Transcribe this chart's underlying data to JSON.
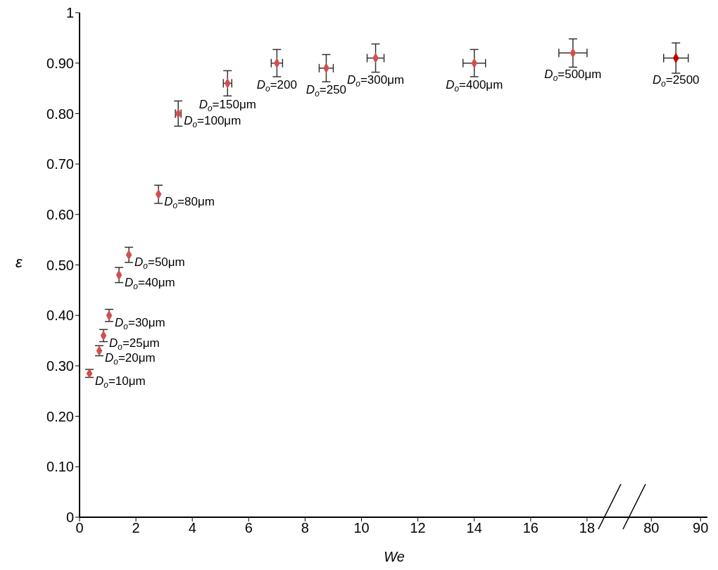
{
  "chart_data": [
    {
      "type": "scatter",
      "ylabel": "ε",
      "xlabel": "We",
      "xlim": [
        0,
        18.9
      ],
      "xticks": [
        0,
        2,
        4,
        6,
        8,
        10,
        12,
        14,
        16,
        18
      ],
      "ylim": [
        0,
        1
      ],
      "yticks": [
        {
          "value": 0,
          "label": "0"
        },
        {
          "value": 0.1,
          "label": "0.10"
        },
        {
          "value": 0.2,
          "label": "0.20"
        },
        {
          "value": 0.3,
          "label": "0.30"
        },
        {
          "value": 0.4,
          "label": "0.40"
        },
        {
          "value": 0.5,
          "label": "0.50"
        },
        {
          "value": 0.6,
          "label": "0.60"
        },
        {
          "value": 0.7,
          "label": "0.70"
        },
        {
          "value": 0.8,
          "label": "0.80"
        },
        {
          "value": 0.9,
          "label": "0.90"
        },
        {
          "value": 1,
          "label": "1"
        }
      ],
      "marker": "diamond",
      "series": [
        {
          "color": "#d05050",
          "x": [
            0.35,
            0.7,
            0.85,
            1.05,
            1.4,
            1.75,
            2.8,
            3.5,
            5.25,
            7.0,
            8.75,
            10.5,
            14.0,
            17.5
          ],
          "values": [
            0.285,
            0.33,
            0.36,
            0.4,
            0.48,
            0.52,
            0.64,
            0.8,
            0.86,
            0.9,
            0.89,
            0.91,
            0.9,
            0.92
          ],
          "errors": [
            0.008,
            0.01,
            0.012,
            0.012,
            0.015,
            0.015,
            0.018,
            0.025,
            0.025,
            0.027,
            0.027,
            0.028,
            0.027,
            0.028
          ],
          "xerrors": [
            null,
            null,
            null,
            null,
            null,
            null,
            null,
            0.1,
            0.15,
            0.2,
            0.25,
            0.3,
            0.4,
            0.5
          ]
        }
      ],
      "annotations": [
        {
          "text": "D$_{o}$=10μm",
          "x": 0.35,
          "y": 0.285
        },
        {
          "text": "D$_{o}$=20μm",
          "x": 0.7,
          "y": 0.33
        },
        {
          "text": "D$_{o}$=25μm",
          "x": 0.85,
          "y": 0.36
        },
        {
          "text": "D$_{o}$=30μm",
          "x": 1.05,
          "y": 0.4
        },
        {
          "text": "D$_{o}$=40μm",
          "x": 1.4,
          "y": 0.48
        },
        {
          "text": "D$_{o}$=50μm",
          "x": 1.75,
          "y": 0.52
        },
        {
          "text": "D$_{o}$=80μm",
          "x": 2.8,
          "y": 0.64
        },
        {
          "text": "D$_{o}$=100μm",
          "x": 3.5,
          "y": 0.8
        },
        {
          "text": "D$_{o}$=150μm",
          "x": 5.25,
          "y": 0.86
        },
        {
          "text": "D$_{o}$=200",
          "x": 7.0,
          "y": 0.9
        },
        {
          "text": "D$_{o}$=250",
          "x": 8.75,
          "y": 0.89
        },
        {
          "text": "D$_{o}$=300μm",
          "x": 10.5,
          "y": 0.91
        },
        {
          "text": "D$_{o}$=400μm",
          "x": 14.0,
          "y": 0.9
        },
        {
          "text": "D$_{o}$=500μm",
          "x": 17.5,
          "y": 0.92
        }
      ]
    },
    {
      "type": "scatter",
      "xlim": [
        72.1,
        91.4
      ],
      "xticks": [
        80,
        90
      ],
      "ylim": [
        0,
        1
      ],
      "tick_labels": "x",
      "marker": "diamond",
      "series": [
        {
          "color": "#c00000",
          "x": [
            85
          ],
          "values": [
            0.91
          ],
          "errors": [
            0.03
          ],
          "xerrors": [
            2.5
          ]
        }
      ],
      "annotations": [
        {
          "text": "D$_{o}$=2500",
          "x": 85,
          "y": 0.91
        }
      ]
    }
  ]
}
